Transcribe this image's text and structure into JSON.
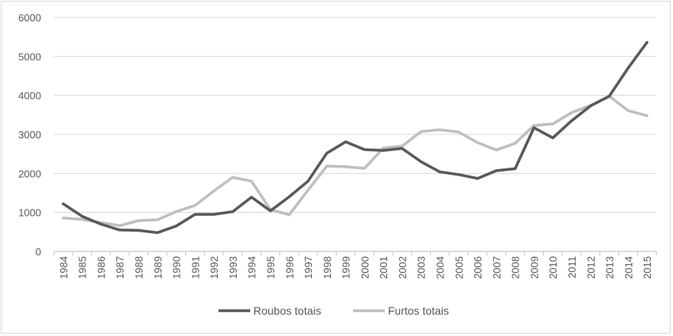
{
  "chart_data": {
    "type": "line",
    "title": "",
    "xlabel": "",
    "ylabel": "",
    "x": [
      "1984",
      "1985",
      "1986",
      "1987",
      "1988",
      "1989",
      "1990",
      "1991",
      "1992",
      "1993",
      "1994",
      "1995",
      "1996",
      "1997",
      "1998",
      "1999",
      "2000",
      "2001",
      "2002",
      "2003",
      "2004",
      "2005",
      "2006",
      "2007",
      "2008",
      "2009",
      "2010",
      "2011",
      "2012",
      "2013",
      "2014",
      "2015"
    ],
    "ylim": [
      0,
      6000
    ],
    "yticks": [
      "0",
      "1000",
      "2000",
      "3000",
      "4000",
      "5000",
      "6000"
    ],
    "grid": "horizontal",
    "legend_position": "bottom",
    "series": [
      {
        "name": "Roubos totais",
        "color": "#595959",
        "values": [
          1220,
          900,
          700,
          550,
          540,
          480,
          650,
          950,
          950,
          1020,
          1390,
          1040,
          1400,
          1800,
          2520,
          2810,
          2610,
          2590,
          2640,
          2300,
          2040,
          1970,
          1870,
          2070,
          2120,
          3170,
          2910,
          3350,
          3730,
          3980,
          4700,
          5360
        ]
      },
      {
        "name": "Furtos totais",
        "color": "#bfbfbf",
        "values": [
          860,
          820,
          740,
          660,
          790,
          810,
          1020,
          1180,
          1550,
          1900,
          1800,
          1070,
          940,
          1570,
          2190,
          2170,
          2130,
          2650,
          2700,
          3070,
          3120,
          3060,
          2790,
          2600,
          2770,
          3230,
          3270,
          3560,
          3740,
          3980,
          3610,
          3480
        ]
      }
    ]
  }
}
